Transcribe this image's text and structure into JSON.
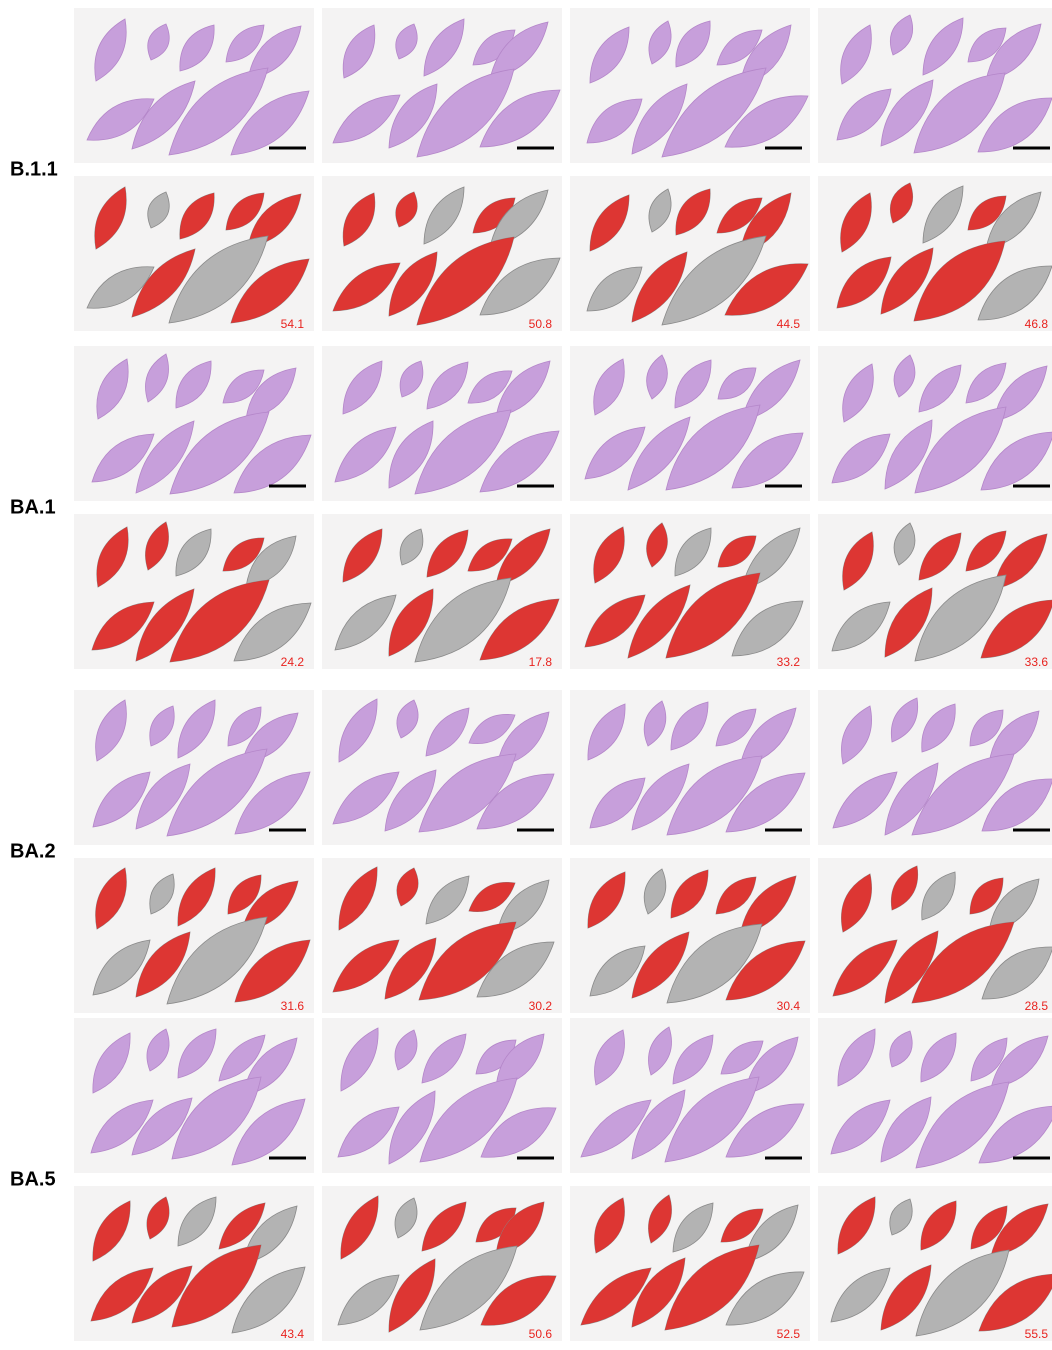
{
  "groups": [
    {
      "label": "B.1.1",
      "values": [
        54.1,
        50.8,
        44.5,
        46.8
      ]
    },
    {
      "label": "BA.1",
      "values": [
        24.2,
        17.8,
        33.2,
        33.6
      ]
    },
    {
      "label": "BA.2",
      "values": [
        31.6,
        30.2,
        30.4,
        28.5
      ]
    },
    {
      "label": "BA.5",
      "values": [
        43.4,
        50.6,
        52.5,
        55.5
      ]
    }
  ]
}
